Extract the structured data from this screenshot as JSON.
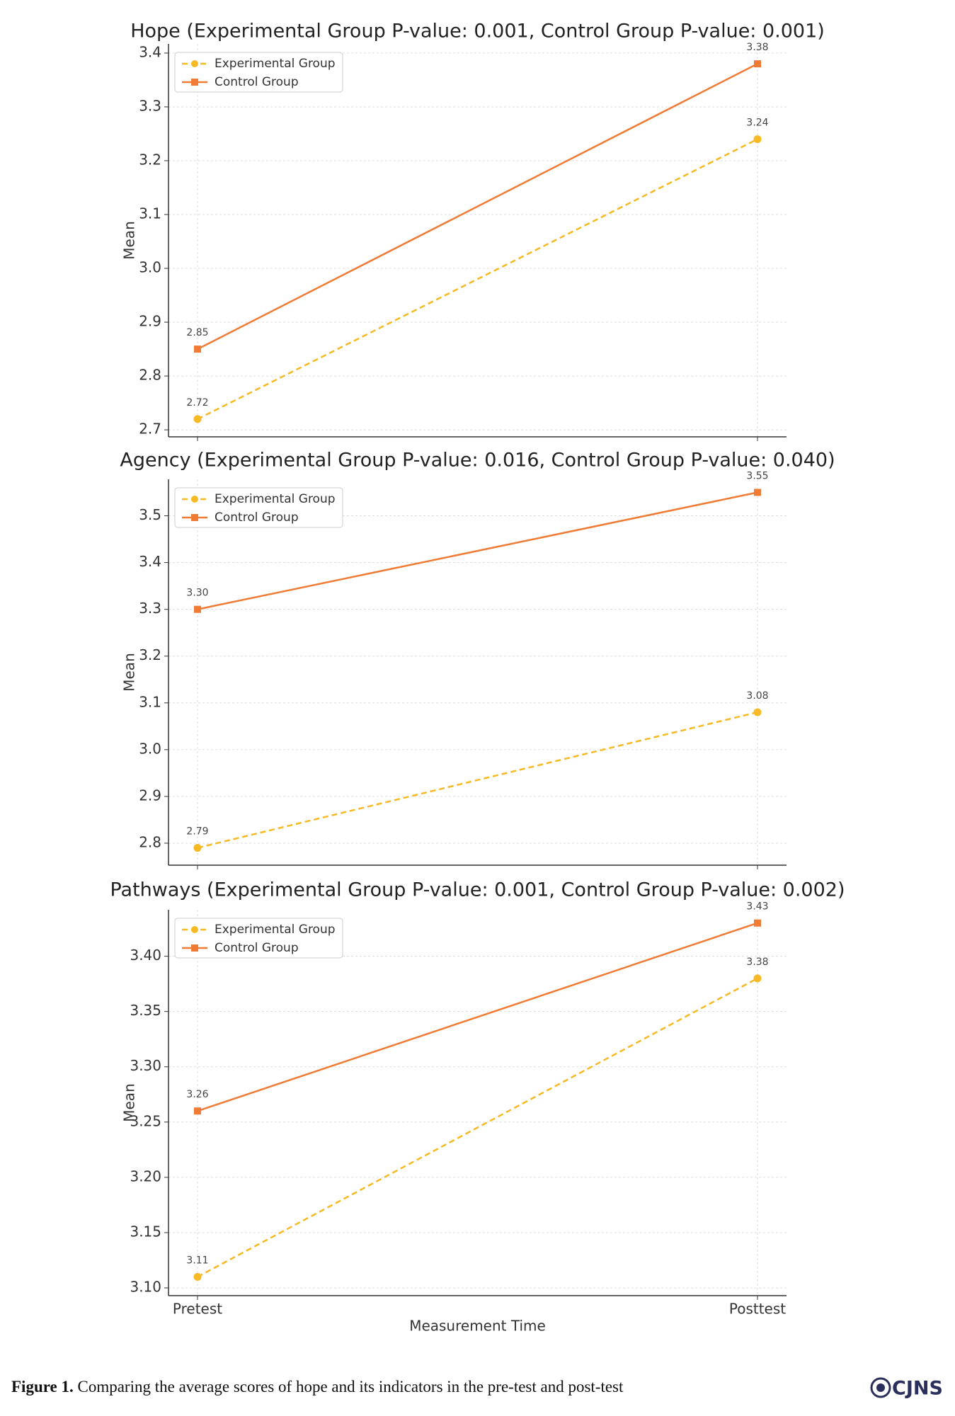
{
  "chart_data": [
    {
      "type": "line",
      "title": "Hope (Experimental Group P-value: 0.001, Control Group P-value: 0.001)",
      "ylabel": "Mean",
      "series": [
        {
          "name": "Experimental Group",
          "color": "#f7b924",
          "linestyle": "dashed",
          "marker": "circle",
          "values": [
            2.72,
            3.24
          ]
        },
        {
          "name": "Control Group",
          "color": "#f07b35",
          "linestyle": "solid",
          "marker": "square",
          "values": [
            2.85,
            3.38
          ]
        }
      ],
      "ylim": [
        2.687,
        3.417
      ],
      "yticks": [
        2.7,
        2.8,
        2.9,
        {
          "value": 3,
          "label": "3.0"
        },
        3.1,
        3.2,
        3.3,
        3.4
      ],
      "grid": true,
      "legend": "upper left"
    },
    {
      "type": "line",
      "title": "Agency (Experimental Group P-value: 0.016, Control Group P-value: 0.040)",
      "ylabel": "Mean",
      "series": [
        {
          "name": "Experimental Group",
          "color": "#f7b924",
          "linestyle": "dashed",
          "marker": "circle",
          "values": [
            2.79,
            3.08
          ]
        },
        {
          "name": "Control Group",
          "color": "#f07b35",
          "linestyle": "solid",
          "marker": "square",
          "values": [
            3.3,
            3.55
          ],
          "value_labels": [
            "3.30",
            "3.55"
          ]
        }
      ],
      "ylim": [
        2.753,
        3.578
      ],
      "yticks": [
        2.8,
        2.9,
        {
          "value": 3,
          "label": "3.0"
        },
        3.1,
        3.2,
        3.3,
        3.4,
        3.5
      ],
      "grid": true,
      "legend": "upper left"
    },
    {
      "type": "line",
      "title": "Pathways (Experimental Group P-value: 0.001, Control Group P-value: 0.002)",
      "ylabel": "Mean",
      "xlabel": "Measurement Time",
      "categories": [
        "Pretest",
        "Posttest"
      ],
      "series": [
        {
          "name": "Experimental Group",
          "color": "#f7b924",
          "linestyle": "dashed",
          "marker": "circle",
          "values": [
            3.11,
            3.38
          ]
        },
        {
          "name": "Control Group",
          "color": "#f07b35",
          "linestyle": "solid",
          "marker": "square",
          "values": [
            3.26,
            3.43
          ]
        }
      ],
      "ylim": [
        3.093,
        3.442
      ],
      "yticks": [
        {
          "value": 3.1,
          "label": "3.10"
        },
        3.15,
        {
          "value": 3.2,
          "label": "3.20"
        },
        3.25,
        {
          "value": 3.3,
          "label": "3.30"
        },
        3.35,
        {
          "value": 3.4,
          "label": "3.40"
        }
      ],
      "grid": true,
      "legend": "upper left"
    }
  ],
  "caption": {
    "label": "Figure 1.",
    "text": "Comparing the average scores of hope and its indicators in the pre-test and post-test"
  },
  "logo": "CJNS"
}
